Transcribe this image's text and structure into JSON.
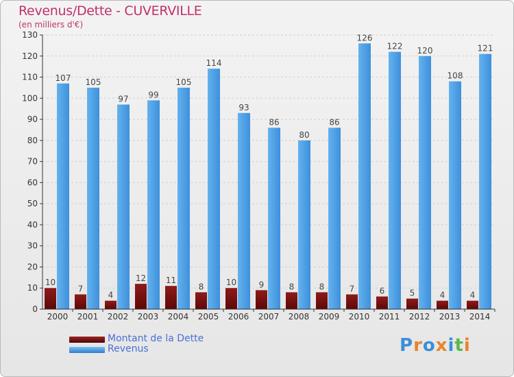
{
  "header": {
    "title": "Revenus/Dette - CUVERVILLE",
    "subtitle": "(en milliers d'€)"
  },
  "colors": {
    "title": "#c0306a",
    "debt": "#7a1010",
    "revenue": "#4aa0e6",
    "grid": "#cfcfcf",
    "axis": "#333333",
    "legend_text": "#4a6fd6"
  },
  "chart_data": {
    "type": "bar",
    "categories": [
      "2000",
      "2001",
      "2002",
      "2003",
      "2004",
      "2005",
      "2006",
      "2007",
      "2008",
      "2009",
      "2010",
      "2011",
      "2012",
      "2013",
      "2014"
    ],
    "series": [
      {
        "name": "Montant de la Dette",
        "values": [
          10,
          7,
          4,
          12,
          11,
          8,
          10,
          9,
          8,
          8,
          7,
          6,
          5,
          4,
          4
        ]
      },
      {
        "name": "Revenus",
        "values": [
          107,
          105,
          97,
          99,
          105,
          114,
          93,
          86,
          80,
          86,
          126,
          122,
          120,
          108,
          121
        ]
      }
    ],
    "yticks": [
      0,
      10,
      20,
      30,
      40,
      50,
      60,
      70,
      80,
      90,
      100,
      110,
      120,
      130
    ],
    "ylim": [
      0,
      130
    ],
    "grid": true,
    "legend": "bottom-left"
  },
  "legend": {
    "debt_label": "Montant de la Dette",
    "revenue_label": "Revenus"
  },
  "logo": {
    "text": "Proxiti"
  }
}
